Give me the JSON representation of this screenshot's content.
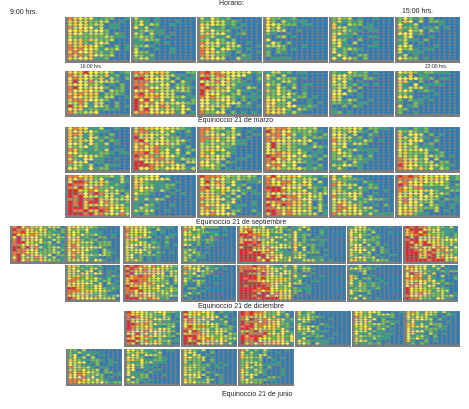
{
  "header": {
    "title": "Horario:",
    "time_start": "9:00 hrs.",
    "time_end": "15:00 hrs.",
    "time_16": "16:00 hrs",
    "time_22": "22:00 hrs."
  },
  "captions": {
    "march": "Equinoccio 21 de marzo",
    "september": "Equinoccio 21 de septiembre",
    "december": "Equinoccio 21 de diciembre",
    "june": "Equinoccio 21 de junio"
  },
  "colors": {
    "panel_bg": "#7d7d7d",
    "palette": [
      "#e8262b",
      "#f47a3a",
      "#f9c43c",
      "#f4ec4b",
      "#b8dd57",
      "#6cc35a",
      "#2ea58a",
      "#2a7db8"
    ]
  }
}
